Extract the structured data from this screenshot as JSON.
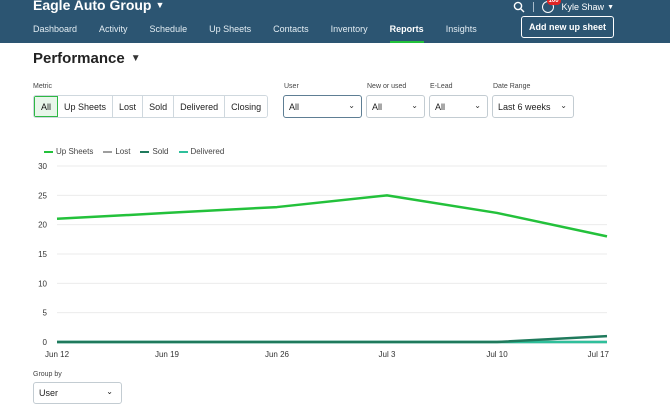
{
  "brand": {
    "name": "Eagle Auto Group"
  },
  "nav": {
    "items": [
      {
        "label": "Dashboard"
      },
      {
        "label": "Activity"
      },
      {
        "label": "Schedule"
      },
      {
        "label": "Up Sheets"
      },
      {
        "label": "Contacts"
      },
      {
        "label": "Inventory"
      },
      {
        "label": "Reports",
        "active": true
      },
      {
        "label": "Insights"
      }
    ]
  },
  "header": {
    "notifications_count": "100",
    "user_name": "Kyle Shaw",
    "add_button": "Add new up sheet"
  },
  "page": {
    "title": "Performance"
  },
  "filters": {
    "metric_label": "Metric",
    "metric_options": [
      "All",
      "Up Sheets",
      "Lost",
      "Sold",
      "Delivered",
      "Closing"
    ],
    "metric_selected": "All",
    "user_label": "User",
    "user_value": "All",
    "new_used_label": "New or used",
    "new_used_value": "All",
    "elead_label": "E-Lead",
    "elead_value": "All",
    "date_range_label": "Date Range",
    "date_range_value": "Last 6 weeks"
  },
  "group_by": {
    "label": "Group by",
    "value": "User"
  },
  "colors": {
    "up_sheets": "#23c13b",
    "lost": "#9e9e9e",
    "sold": "#1f7a5c",
    "delivered": "#2fbf9b",
    "header_bg": "#2c5572"
  },
  "chart_data": {
    "type": "line",
    "categories": [
      "Jun 12",
      "Jun 19",
      "Jun 26",
      "Jul 3",
      "Jul 10",
      "Jul 17"
    ],
    "ylim": [
      0,
      30
    ],
    "yticks": [
      0,
      5,
      10,
      15,
      20,
      25,
      30
    ],
    "series": [
      {
        "name": "Up Sheets",
        "color": "#23c13b",
        "values": [
          21,
          22,
          23,
          25,
          22,
          18
        ]
      },
      {
        "name": "Lost",
        "color": "#9e9e9e",
        "values": [
          0,
          0,
          0,
          0,
          0,
          0
        ]
      },
      {
        "name": "Sold",
        "color": "#1f7a5c",
        "values": [
          0,
          0,
          0,
          0,
          0,
          1
        ]
      },
      {
        "name": "Delivered",
        "color": "#2fbf9b",
        "values": [
          0,
          0,
          0,
          0,
          0,
          0
        ]
      }
    ]
  }
}
